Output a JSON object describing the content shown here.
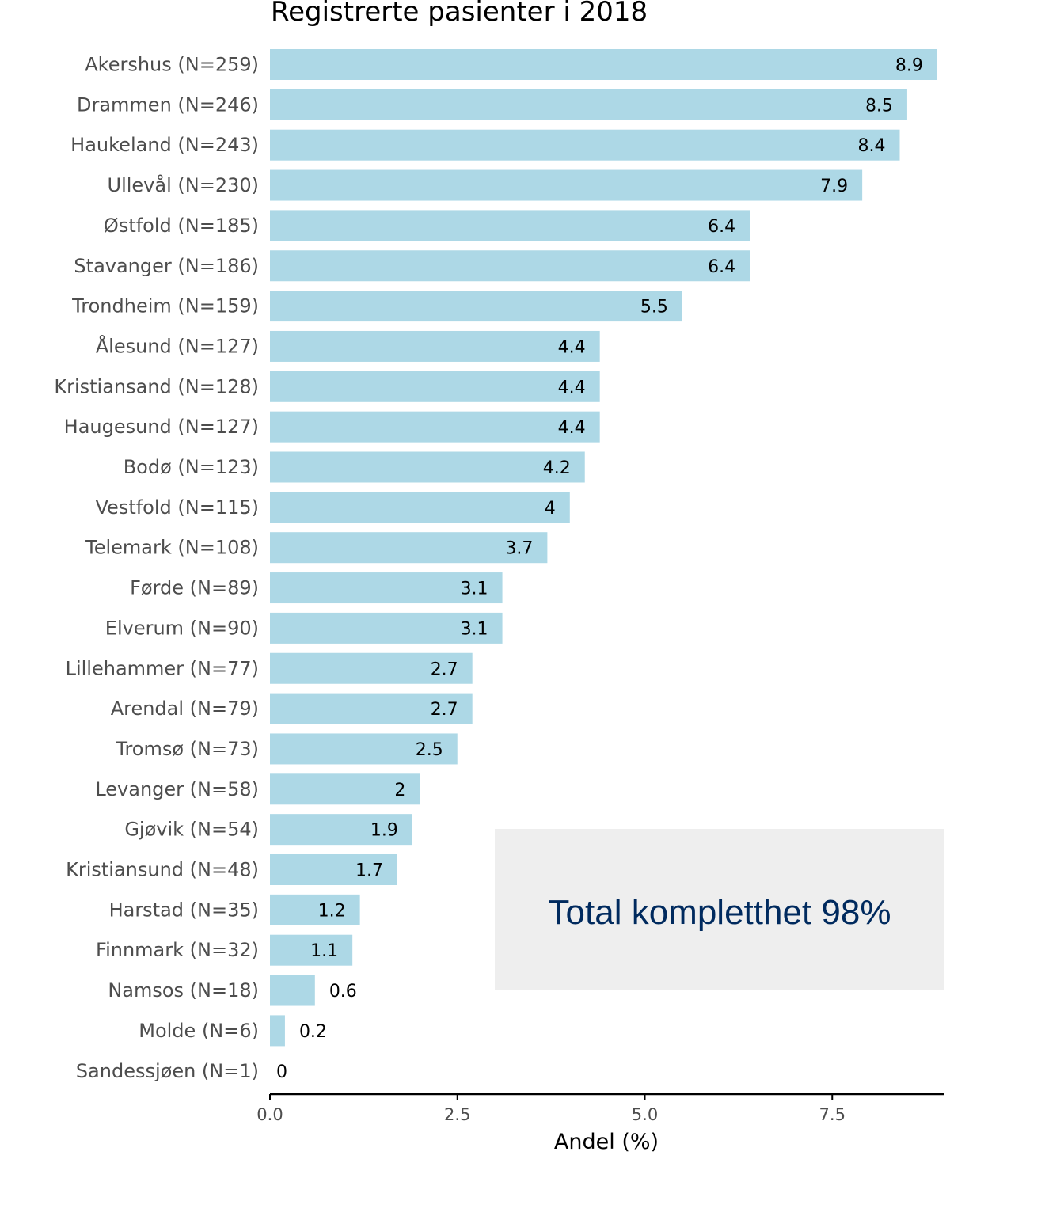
{
  "chart_data": {
    "type": "bar",
    "orientation": "horizontal",
    "title": "Registrerte pasienter i 2018",
    "xlabel": "Andel (%)",
    "ylabel": "",
    "xlim": [
      0,
      9
    ],
    "x_ticks": [
      "0.0",
      "2.5",
      "5.0",
      "7.5"
    ],
    "grid": false,
    "categories": [
      "Akershus (N=259)",
      "Drammen (N=246)",
      "Haukeland (N=243)",
      "Ullevål (N=230)",
      "Østfold (N=185)",
      "Stavanger (N=186)",
      "Trondheim (N=159)",
      "Ålesund (N=127)",
      "Kristiansand (N=128)",
      "Haugesund (N=127)",
      "Bodø (N=123)",
      "Vestfold (N=115)",
      "Telemark (N=108)",
      "Førde (N=89)",
      "Elverum (N=90)",
      "Lillehammer (N=77)",
      "Arendal (N=79)",
      "Tromsø (N=73)",
      "Levanger (N=58)",
      "Gjøvik (N=54)",
      "Kristiansund (N=48)",
      "Harstad (N=35)",
      "Finnmark (N=32)",
      "Namsos (N=18)",
      "Molde (N=6)",
      "Sandessjøen (N=1)"
    ],
    "values": [
      8.9,
      8.5,
      8.4,
      7.9,
      6.4,
      6.4,
      5.5,
      4.4,
      4.4,
      4.4,
      4.2,
      4.0,
      3.7,
      3.1,
      3.1,
      2.7,
      2.7,
      2.5,
      2.0,
      1.9,
      1.7,
      1.2,
      1.1,
      0.6,
      0.2,
      0.0
    ],
    "value_labels": [
      "8.9",
      "8.5",
      "8.4",
      "7.9",
      "6.4",
      "6.4",
      "5.5",
      "4.4",
      "4.4",
      "4.4",
      "4.2",
      "4",
      "3.7",
      "3.1",
      "3.1",
      "2.7",
      "2.7",
      "2.5",
      "2",
      "1.9",
      "1.7",
      "1.2",
      "1.1",
      "0.6",
      "0.2",
      "0"
    ],
    "annotation": "Total kompletthet 98%",
    "colors": {
      "bar": "#add8e6",
      "annotation_box": "#eeeeee",
      "annotation_text": "#002a5e",
      "axis": "#000000"
    }
  }
}
